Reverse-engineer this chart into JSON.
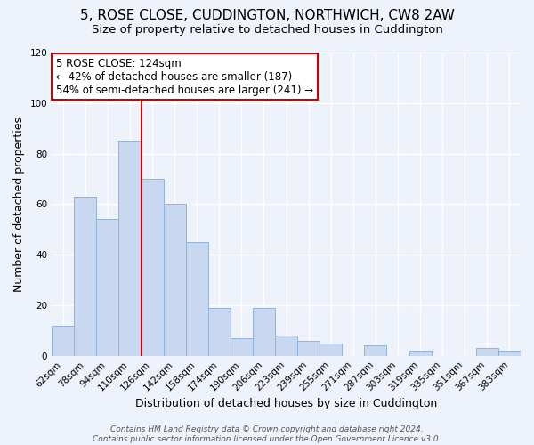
{
  "title": "5, ROSE CLOSE, CUDDINGTON, NORTHWICH, CW8 2AW",
  "subtitle": "Size of property relative to detached houses in Cuddington",
  "xlabel": "Distribution of detached houses by size in Cuddington",
  "ylabel": "Number of detached properties",
  "bar_color": "#c8d8f0",
  "bar_edge_color": "#92b4d8",
  "categories": [
    "62sqm",
    "78sqm",
    "94sqm",
    "110sqm",
    "126sqm",
    "142sqm",
    "158sqm",
    "174sqm",
    "190sqm",
    "206sqm",
    "223sqm",
    "239sqm",
    "255sqm",
    "271sqm",
    "287sqm",
    "303sqm",
    "319sqm",
    "335sqm",
    "351sqm",
    "367sqm",
    "383sqm"
  ],
  "values": [
    12,
    63,
    54,
    85,
    70,
    60,
    45,
    19,
    7,
    19,
    8,
    6,
    5,
    0,
    4,
    0,
    2,
    0,
    0,
    3,
    2
  ],
  "annotation_text": "5 ROSE CLOSE: 124sqm\n← 42% of detached houses are smaller (187)\n54% of semi-detached houses are larger (241) →",
  "annotation_box_color": "white",
  "annotation_box_edge_color": "#cc0000",
  "vline_x_idx": 4,
  "vline_color": "#cc0000",
  "ylim": [
    0,
    120
  ],
  "yticks": [
    0,
    20,
    40,
    60,
    80,
    100,
    120
  ],
  "footer": "Contains HM Land Registry data © Crown copyright and database right 2024.\nContains public sector information licensed under the Open Government Licence v3.0.",
  "background_color": "#eef2fb",
  "grid_color": "#ffffff",
  "title_fontsize": 11,
  "subtitle_fontsize": 9.5,
  "xlabel_fontsize": 9,
  "ylabel_fontsize": 9,
  "tick_fontsize": 7.5,
  "annotation_fontsize": 8.5,
  "footer_fontsize": 6.5
}
